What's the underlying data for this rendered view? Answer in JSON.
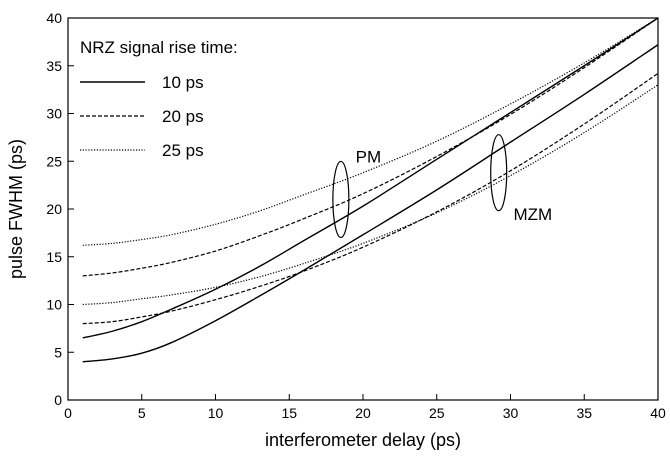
{
  "chart_data": {
    "type": "line",
    "xlabel": "interferometer delay (ps)",
    "ylabel": "pulse FWHM (ps)",
    "xlim": [
      0,
      40
    ],
    "ylim": [
      0,
      40
    ],
    "xticks": [
      0,
      5,
      10,
      15,
      20,
      25,
      30,
      35,
      40
    ],
    "yticks": [
      0,
      5,
      10,
      15,
      20,
      25,
      30,
      35,
      40
    ],
    "grid": false,
    "legend": {
      "title": "NRZ signal rise time:",
      "placement": "top-left",
      "entries": [
        {
          "label": "10 ps",
          "style": "solid"
        },
        {
          "label": "20 ps",
          "style": "dashed"
        },
        {
          "label": "25 ps",
          "style": "dotted"
        }
      ]
    },
    "annotations": [
      {
        "text": "PM",
        "x": 18.5,
        "y": 21
      },
      {
        "text": "MZM",
        "x": 29.2,
        "y": 23.8
      }
    ],
    "series": [
      {
        "group": "PM",
        "style": "solid",
        "x": [
          1,
          3,
          5,
          7,
          10,
          13,
          16,
          20,
          25,
          30,
          35,
          40
        ],
        "y": [
          6.5,
          7.2,
          8.2,
          9.5,
          11.6,
          14.0,
          16.7,
          20.3,
          25.2,
          30.1,
          35.0,
          40.0
        ]
      },
      {
        "group": "PM",
        "style": "dashed",
        "x": [
          1,
          3,
          5,
          7,
          10,
          13,
          16,
          20,
          25,
          30,
          35,
          40
        ],
        "y": [
          13.0,
          13.3,
          13.8,
          14.4,
          15.6,
          17.2,
          19.0,
          21.6,
          25.5,
          29.9,
          34.8,
          40.0
        ]
      },
      {
        "group": "PM",
        "style": "dotted",
        "x": [
          1,
          3,
          5,
          7,
          10,
          13,
          16,
          20,
          25,
          30,
          35,
          40
        ],
        "y": [
          16.2,
          16.4,
          16.8,
          17.3,
          18.4,
          19.8,
          21.5,
          23.8,
          27.1,
          31.0,
          35.3,
          40.0
        ]
      },
      {
        "group": "MZM",
        "style": "solid",
        "x": [
          1,
          3,
          5,
          7,
          10,
          13,
          16,
          20,
          25,
          30,
          35,
          40
        ],
        "y": [
          4.0,
          4.3,
          4.9,
          6.0,
          8.3,
          10.9,
          13.6,
          17.3,
          22.0,
          27.0,
          32.0,
          37.2
        ]
      },
      {
        "group": "MZM",
        "style": "dashed",
        "x": [
          1,
          3,
          5,
          7,
          10,
          13,
          16,
          20,
          25,
          30,
          35,
          40
        ],
        "y": [
          8.0,
          8.2,
          8.7,
          9.3,
          10.5,
          11.9,
          13.5,
          16.0,
          19.7,
          24.0,
          28.9,
          34.2
        ]
      },
      {
        "group": "MZM",
        "style": "dotted",
        "x": [
          1,
          3,
          5,
          7,
          10,
          13,
          16,
          20,
          25,
          30,
          35,
          40
        ],
        "y": [
          10.0,
          10.2,
          10.6,
          11.0,
          11.8,
          12.9,
          14.3,
          16.4,
          19.6,
          23.5,
          28.0,
          33.0
        ]
      }
    ]
  }
}
